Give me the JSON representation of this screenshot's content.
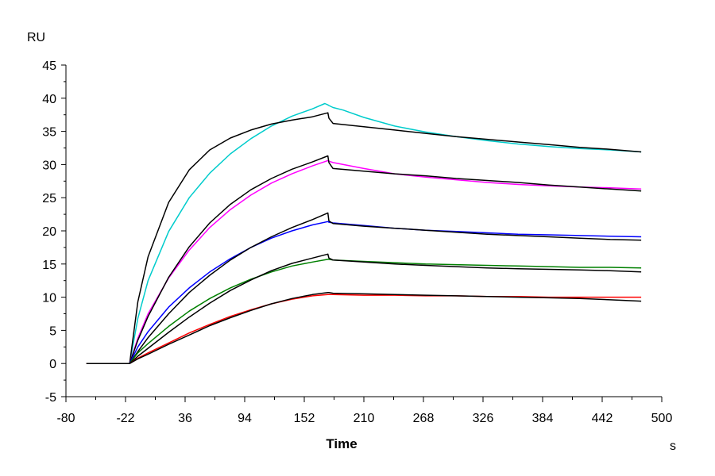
{
  "chart_data": {
    "type": "line",
    "ylabel": "RU",
    "xlabel": "Time",
    "xunit": "s",
    "xlim": [
      -80,
      500
    ],
    "ylim": [
      -5,
      45
    ],
    "xticks": [
      -80,
      -22,
      36,
      94,
      152,
      210,
      268,
      326,
      384,
      442,
      500
    ],
    "yticks": [
      -5,
      0,
      5,
      10,
      15,
      20,
      25,
      30,
      35,
      40,
      45
    ],
    "grid": false,
    "legend": "none",
    "series": [
      {
        "color": "#00CCCC",
        "x": [
          -60,
          -20,
          -18,
          -10,
          0,
          20,
          40,
          60,
          80,
          100,
          120,
          140,
          160,
          172,
          175,
          176,
          180,
          190,
          210,
          240,
          270,
          300,
          330,
          360,
          390,
          420,
          450,
          480
        ],
        "y": [
          0,
          0,
          0,
          6.8,
          12.5,
          19.9,
          25,
          28.7,
          31.6,
          33.9,
          35.8,
          37.3,
          38.4,
          39.2,
          39,
          38.9,
          38.6,
          38.2,
          37.1,
          35.8,
          34.9,
          34.2,
          33.6,
          33.1,
          32.7,
          32.4,
          32.2,
          31.9
        ]
      },
      {
        "color": "#000000",
        "x": [
          -60,
          -20,
          -18,
          -10,
          0,
          20,
          40,
          60,
          80,
          100,
          120,
          140,
          160,
          175,
          176,
          180,
          210,
          240,
          270,
          300,
          330,
          360,
          390,
          420,
          450,
          480
        ],
        "y": [
          0,
          0,
          0,
          9.3,
          16.1,
          24.3,
          29.2,
          32.2,
          34,
          35.2,
          36.1,
          36.7,
          37.2,
          37.8,
          37,
          36.2,
          35.7,
          35.2,
          34.7,
          34.2,
          33.8,
          33.4,
          33,
          32.6,
          32.3,
          31.9
        ]
      },
      {
        "color": "#FF00FF",
        "x": [
          -60,
          -20,
          -18,
          -10,
          0,
          20,
          40,
          60,
          80,
          100,
          120,
          140,
          160,
          175,
          176,
          180,
          210,
          240,
          270,
          300,
          330,
          360,
          390,
          420,
          450,
          480
        ],
        "y": [
          0,
          0,
          0,
          3.8,
          7.5,
          12.9,
          17.1,
          20.5,
          23.2,
          25.4,
          27.2,
          28.6,
          29.8,
          30.6,
          30.5,
          30.3,
          29.4,
          28.6,
          28.1,
          27.7,
          27.3,
          27,
          26.8,
          26.6,
          26.5,
          26.3
        ]
      },
      {
        "color": "#000000",
        "x": [
          -60,
          -20,
          -18,
          -10,
          0,
          20,
          40,
          60,
          80,
          100,
          120,
          140,
          160,
          175,
          176,
          180,
          210,
          240,
          270,
          300,
          330,
          360,
          390,
          420,
          450,
          480
        ],
        "y": [
          0,
          0,
          0,
          3.5,
          7.1,
          13,
          17.6,
          21.2,
          24,
          26.2,
          27.9,
          29.3,
          30.4,
          31.3,
          30.3,
          29.4,
          29,
          28.6,
          28.3,
          27.9,
          27.6,
          27.3,
          26.9,
          26.6,
          26.3,
          26
        ]
      },
      {
        "color": "#0000FF",
        "x": [
          -60,
          -20,
          -18,
          -10,
          0,
          20,
          40,
          60,
          80,
          100,
          120,
          140,
          160,
          175,
          176,
          180,
          210,
          240,
          270,
          300,
          330,
          360,
          390,
          420,
          450,
          480
        ],
        "y": [
          0,
          0,
          0,
          2.5,
          4.8,
          8.5,
          11.4,
          13.8,
          15.8,
          17.5,
          18.9,
          20,
          20.9,
          21.4,
          21.3,
          21.2,
          20.8,
          20.4,
          20.1,
          19.9,
          19.7,
          19.5,
          19.4,
          19.3,
          19.2,
          19.1
        ]
      },
      {
        "color": "#000000",
        "x": [
          -60,
          -20,
          -18,
          -10,
          0,
          20,
          40,
          60,
          80,
          100,
          120,
          140,
          160,
          175,
          176,
          180,
          210,
          240,
          270,
          300,
          330,
          360,
          390,
          420,
          450,
          480
        ],
        "y": [
          0,
          0,
          0,
          1.8,
          3.9,
          7.5,
          10.7,
          13.3,
          15.6,
          17.5,
          19.1,
          20.5,
          21.7,
          22.7,
          21.5,
          21.1,
          20.7,
          20.4,
          20.1,
          19.8,
          19.5,
          19.3,
          19.1,
          18.9,
          18.7,
          18.6
        ]
      },
      {
        "color": "#008000",
        "x": [
          -60,
          -20,
          -18,
          -10,
          0,
          20,
          40,
          60,
          80,
          100,
          120,
          140,
          160,
          175,
          176,
          180,
          210,
          240,
          270,
          300,
          330,
          360,
          390,
          420,
          450,
          480
        ],
        "y": [
          0,
          0,
          0,
          1.6,
          3,
          5.6,
          7.9,
          9.8,
          11.4,
          12.7,
          13.8,
          14.7,
          15.3,
          15.7,
          15.7,
          15.6,
          15.4,
          15.2,
          15,
          14.9,
          14.8,
          14.7,
          14.6,
          14.5,
          14.5,
          14.4
        ]
      },
      {
        "color": "#000000",
        "x": [
          -60,
          -20,
          -18,
          -10,
          0,
          20,
          40,
          60,
          80,
          100,
          120,
          140,
          160,
          175,
          176,
          180,
          210,
          240,
          270,
          300,
          330,
          360,
          390,
          420,
          450,
          480
        ],
        "y": [
          0,
          0,
          0,
          1.1,
          2.3,
          4.7,
          7,
          9.1,
          11,
          12.6,
          14,
          15.1,
          15.9,
          16.5,
          15.9,
          15.6,
          15.3,
          15,
          14.8,
          14.6,
          14.4,
          14.3,
          14.2,
          14.1,
          14,
          13.8
        ]
      },
      {
        "color": "#FF0000",
        "x": [
          -60,
          -20,
          -18,
          -10,
          0,
          20,
          40,
          60,
          80,
          100,
          120,
          140,
          160,
          175,
          176,
          180,
          210,
          240,
          270,
          300,
          330,
          360,
          390,
          420,
          450,
          480
        ],
        "y": [
          0,
          0,
          0,
          0.8,
          1.6,
          3.1,
          4.6,
          5.9,
          7.1,
          8.1,
          9,
          9.7,
          10.2,
          10.4,
          10.4,
          10.4,
          10.3,
          10.3,
          10.2,
          10.2,
          10.1,
          10.1,
          10,
          10,
          10,
          10
        ]
      },
      {
        "color": "#000000",
        "x": [
          -60,
          -20,
          -18,
          -10,
          0,
          20,
          40,
          60,
          80,
          100,
          120,
          140,
          160,
          175,
          176,
          180,
          210,
          240,
          270,
          300,
          330,
          360,
          390,
          420,
          450,
          480
        ],
        "y": [
          0,
          0,
          0,
          0.7,
          1.4,
          2.9,
          4.3,
          5.7,
          6.9,
          8,
          9,
          9.8,
          10.4,
          10.7,
          10.7,
          10.6,
          10.5,
          10.4,
          10.3,
          10.2,
          10.1,
          10,
          9.9,
          9.8,
          9.6,
          9.4
        ]
      }
    ]
  }
}
